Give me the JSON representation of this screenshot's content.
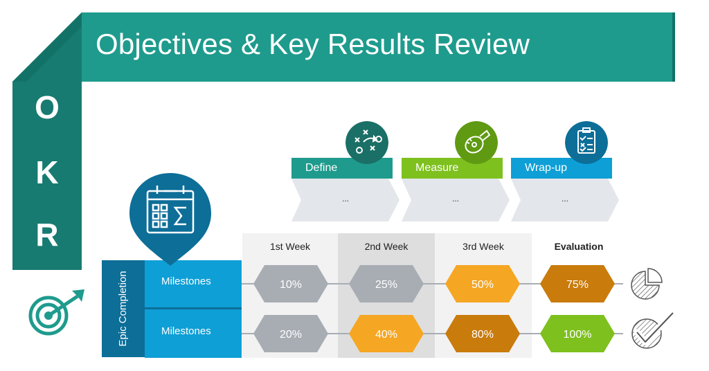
{
  "title": "Objectives & Key Results Review",
  "okr_letters": [
    "O",
    "K",
    "R"
  ],
  "steps": [
    {
      "label": "Define",
      "body": "...",
      "icon": "strategy-play-icon",
      "color": "#1e9b8d",
      "icon_color": "#1a6f66"
    },
    {
      "label": "Measure",
      "body": "...",
      "icon": "measuring-tape-icon",
      "color": "#7ec01e",
      "icon_color": "#5f9a12"
    },
    {
      "label": "Wrap-up",
      "body": "...",
      "icon": "checklist-clipboard-icon",
      "color": "#0e9fd6",
      "icon_color": "#0d6e98"
    }
  ],
  "grid": {
    "group_label": "Epic Completion",
    "columns": [
      "1st Week",
      "2nd Week",
      "3rd Week",
      "Evaluation"
    ],
    "rows": [
      {
        "label": "Milestones",
        "values": [
          "10%",
          "25%",
          "50%",
          "75%"
        ],
        "end_icon": "pie-chart-icon"
      },
      {
        "label": "Milestones",
        "values": [
          "20%",
          "40%",
          "80%",
          "100%"
        ],
        "end_icon": "check-mark-icon"
      }
    ]
  },
  "colors": {
    "teal": "#1e9b8d",
    "dark_teal": "#187b71",
    "green": "#7ec01e",
    "blue": "#0e9fd6",
    "dark_blue": "#0d6e98",
    "gray_hex": "#a8adb4",
    "orange": "#f5a623",
    "dark_orange": "#c97b0c",
    "lime": "#7ec01e"
  }
}
